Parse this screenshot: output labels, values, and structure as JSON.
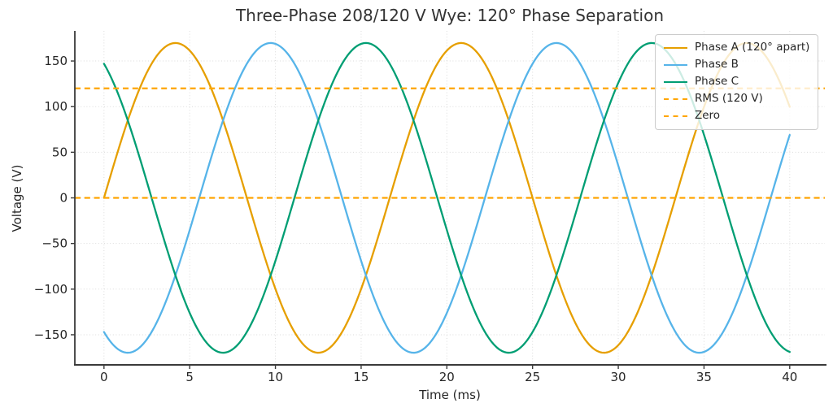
{
  "chart_data": {
    "type": "line",
    "title": "Three-Phase 208/120 V Wye: 120° Phase Separation",
    "xlabel": "Time (ms)",
    "ylabel": "Voltage (V)",
    "xticks": [
      0,
      5,
      10,
      15,
      20,
      25,
      30,
      35,
      40
    ],
    "yticks": [
      -150,
      -100,
      -50,
      0,
      50,
      100,
      150
    ],
    "xlim_ms": [
      -1.7,
      42.05
    ],
    "ylim_v": [
      -183,
      183
    ],
    "grid": {
      "visible": true,
      "style": "dotted",
      "color": "#DBDBDB"
    },
    "spine_color": "#3A3A3A",
    "text_color": "#262626",
    "waveform": {
      "shape": "sine",
      "amplitude_v": 169.7,
      "rms_v": 120,
      "frequency_hz": 60,
      "period_ms": 16.667,
      "t_start_ms": 0,
      "t_end_ms": 40
    },
    "series": [
      {
        "id": "phase-a",
        "name": "Phase A (120° apart)",
        "color": "#E69F00",
        "phase_deg": 0,
        "line_style": "solid"
      },
      {
        "id": "phase-b",
        "name": "Phase B",
        "color": "#56B4E9",
        "phase_deg": -120,
        "line_style": "solid"
      },
      {
        "id": "phase-c",
        "name": "Phase C",
        "color": "#009E73",
        "phase_deg": 120,
        "line_style": "solid"
      }
    ],
    "ref_lines": [
      {
        "id": "rms-line",
        "name": "RMS (120 V)",
        "value_v": 120,
        "color": "#FFA500",
        "line_style": "dashed"
      },
      {
        "id": "zero-line",
        "name": "Zero",
        "value_v": 0,
        "color": "#FFA500",
        "line_style": "dashed"
      }
    ],
    "legend": {
      "position": "upper right"
    }
  }
}
